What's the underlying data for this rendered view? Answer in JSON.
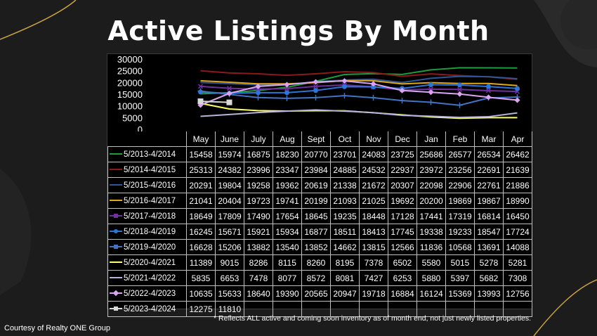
{
  "title": "Active Listings By Month",
  "footnote": "* Reflects ALL active and coming soon inventory as of month end, not just newly listed properties.",
  "credit": "Courtesy of Realty ONE Group",
  "chart_data": {
    "type": "line",
    "title": "",
    "xlabel": "",
    "ylabel": "",
    "ylim": [
      0,
      30000
    ],
    "yticks": [
      "30000",
      "25000",
      "20000",
      "15000",
      "10000",
      "5000",
      "0"
    ],
    "grid": false,
    "legend": "data table below chart",
    "categories": [
      "May",
      "June",
      "July",
      "Aug",
      "Sept",
      "Oct",
      "Nov",
      "Dec",
      "Jan",
      "Feb",
      "Mar",
      "Apr"
    ],
    "series": [
      {
        "name": "5/2013-4/2014",
        "color": "#1e9b3e",
        "marker": "none",
        "values": [
          15458,
          15974,
          16875,
          18230,
          20770,
          23701,
          24083,
          23725,
          25686,
          26577,
          26534,
          26462
        ]
      },
      {
        "name": "5/2014-4/2015",
        "color": "#8b1a1a",
        "marker": "none",
        "values": [
          25313,
          24382,
          23996,
          23347,
          23984,
          24885,
          24532,
          22937,
          23972,
          23256,
          22691,
          21639
        ]
      },
      {
        "name": "5/2015-4/2016",
        "color": "#2f5597",
        "marker": "none",
        "values": [
          20291,
          19804,
          19258,
          19362,
          20619,
          21338,
          21672,
          20307,
          22098,
          22906,
          22761,
          21886
        ]
      },
      {
        "name": "5/2016-4/2017",
        "color": "#e0a818",
        "marker": "none",
        "values": [
          21041,
          20404,
          19723,
          19741,
          20199,
          21093,
          21025,
          19692,
          20200,
          19869,
          19867,
          18990
        ]
      },
      {
        "name": "5/2017-4/2018",
        "color": "#7030a0",
        "marker": "x",
        "values": [
          18649,
          17809,
          17490,
          17654,
          18645,
          19235,
          18448,
          17128,
          17441,
          17319,
          16814,
          16450
        ]
      },
      {
        "name": "5/2018-4/2019",
        "color": "#2e75d6",
        "marker": "circle",
        "values": [
          16245,
          15671,
          15921,
          15934,
          16877,
          18511,
          18413,
          17745,
          19338,
          19233,
          18547,
          17724
        ]
      },
      {
        "name": "5/2019-4/2020",
        "color": "#4472c4",
        "marker": "plus",
        "values": [
          16628,
          15206,
          13882,
          13540,
          13852,
          14662,
          13815,
          12566,
          11836,
          10568,
          13691,
          14088
        ]
      },
      {
        "name": "5/2020-4/2021",
        "color": "#ffff66",
        "marker": "none",
        "values": [
          11389,
          9015,
          8286,
          8115,
          8260,
          8195,
          7378,
          6502,
          5580,
          5015,
          5278,
          5281
        ]
      },
      {
        "name": "5/2021-4/2022",
        "color": "#b4b4dc",
        "marker": "none",
        "values": [
          5835,
          6653,
          7478,
          8077,
          8572,
          8081,
          7427,
          6253,
          5880,
          5397,
          5682,
          7308
        ]
      },
      {
        "name": "5/2022-4/2023",
        "color": "#d9a5f0",
        "marker": "diamond",
        "values": [
          10635,
          15633,
          18640,
          19390,
          20565,
          20947,
          19718,
          16884,
          16124,
          15369,
          13993,
          12756
        ]
      },
      {
        "name": "5/2023-4/2024",
        "color": "#d9d9d9",
        "marker": "square",
        "values": [
          12275,
          11810,
          null,
          null,
          null,
          null,
          null,
          null,
          null,
          null,
          null,
          null
        ]
      }
    ]
  }
}
